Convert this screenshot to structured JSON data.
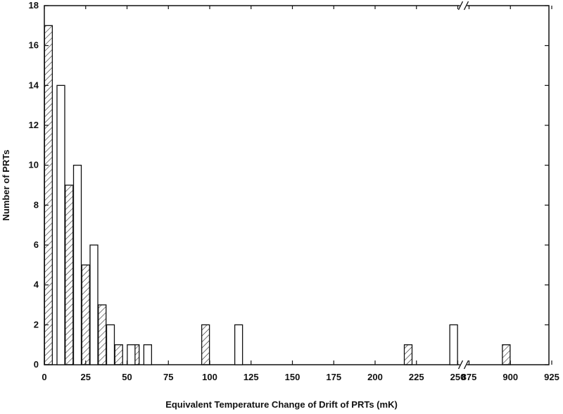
{
  "chart_data": {
    "type": "bar",
    "xlabel": "Equivalent Temperature Change of Drift of PRTs (mK)",
    "ylabel": "Number of PRTs",
    "ylim": [
      0,
      18
    ],
    "y_ticks": [
      "0",
      "2",
      "4",
      "6",
      "8",
      "10",
      "12",
      "14",
      "16",
      "18"
    ],
    "x_ticks": [
      "0",
      "25",
      "50",
      "75",
      "100",
      "125",
      "150",
      "175",
      "200",
      "225",
      "250",
      "875",
      "900",
      "925"
    ],
    "x_axis_break": "between 250 and 875",
    "grid": false,
    "legend": "none",
    "series": [
      {
        "style": "hatched",
        "bars": [
          {
            "x": 2.5,
            "value": 17
          },
          {
            "x": 15,
            "value": 9
          },
          {
            "x": 25,
            "value": 5
          },
          {
            "x": 35,
            "value": 3
          },
          {
            "x": 45,
            "value": 1
          },
          {
            "x": 55,
            "value": 1
          },
          {
            "x": 97.5,
            "value": 2
          },
          {
            "x": 220,
            "value": 1
          },
          {
            "x": 897.5,
            "value": 1
          }
        ]
      },
      {
        "style": "open",
        "bars": [
          {
            "x": 10,
            "value": 14
          },
          {
            "x": 20,
            "value": 10
          },
          {
            "x": 30,
            "value": 6
          },
          {
            "x": 40,
            "value": 2
          },
          {
            "x": 52.5,
            "value": 1
          },
          {
            "x": 62.5,
            "value": 1
          },
          {
            "x": 117.5,
            "value": 2
          },
          {
            "x": 247.5,
            "value": 2
          }
        ]
      }
    ]
  }
}
